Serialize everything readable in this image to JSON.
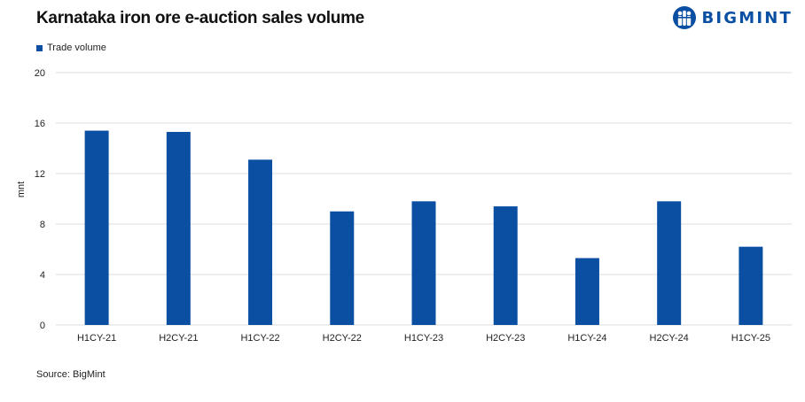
{
  "colors": {
    "bar": "#0b4fa3",
    "grid": "#dddddd",
    "brand": "#0b4fa3"
  },
  "logo": {
    "text": "BIGMINT",
    "icon": "bigmint-people-icon"
  },
  "source": "Source: BigMint",
  "chart_data": {
    "type": "bar",
    "title": "Karnataka iron ore e-auction sales volume",
    "xlabel": "",
    "ylabel": "mnt",
    "categories": [
      "H1CY-21",
      "H2CY-21",
      "H1CY-22",
      "H2CY-22",
      "H1CY-23",
      "H2CY-23",
      "H1CY-24",
      "H2CY-24",
      "H1CY-25"
    ],
    "series": [
      {
        "name": "Trade volume",
        "values": [
          15.4,
          15.3,
          13.1,
          9.0,
          9.8,
          9.4,
          5.3,
          9.8,
          6.2
        ]
      }
    ],
    "ylim": [
      0,
      20
    ],
    "yticks": [
      "0",
      "4",
      "8",
      "12",
      "16",
      "20"
    ],
    "grid": true,
    "legend": "top-left"
  }
}
